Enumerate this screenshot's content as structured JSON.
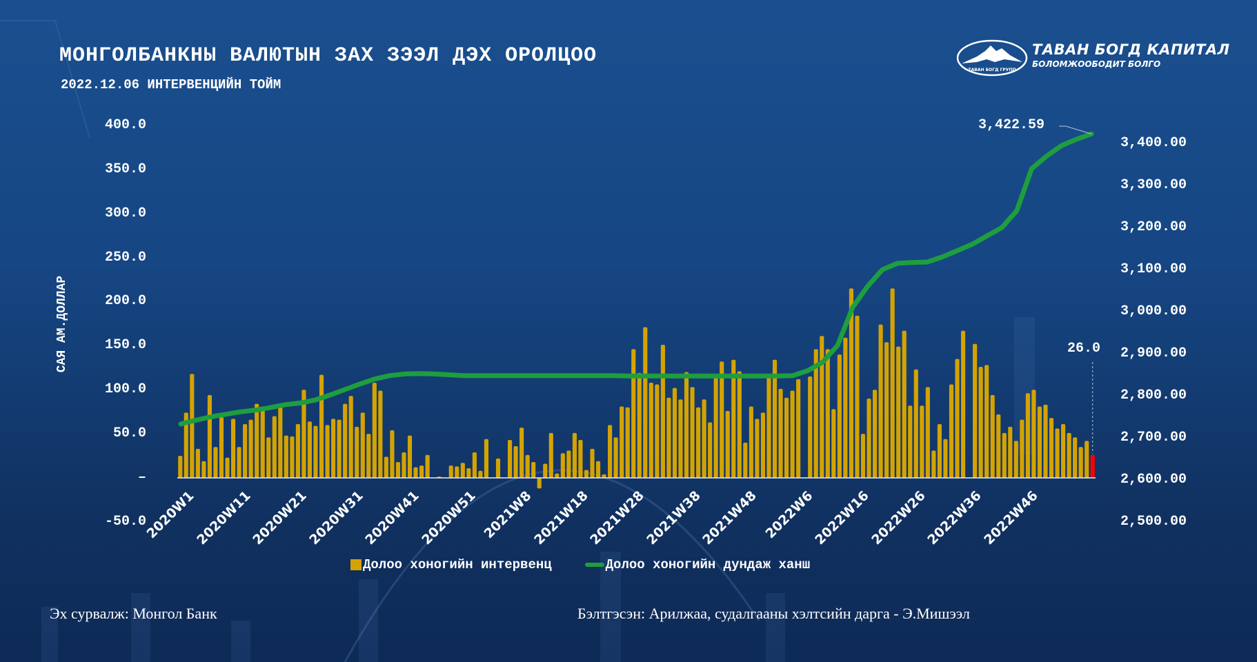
{
  "header": {
    "title": "МОНГОЛБАНКНЫ ВАЛЮТЫН ЗАХ ЗЭЭЛ ДЭХ ОРОЛЦОО",
    "subtitle": "2022.12.06 ИНТЕРВЕНЦИЙН ТОЙМ"
  },
  "logo": {
    "name": "ТАВАН БОГД КАПИТАЛ",
    "tagline": "БОЛОМЖООБОДИТ БОЛГО",
    "emblem_text": "ТАВАН БОГД ГРУПП",
    "icon": "mountain-logo-icon"
  },
  "footer": {
    "source": "Эх сурвалж: Монгол Банк",
    "prepared_by": "Бэлтгэсэн: Арилжаа, судалгааны хэлтсийн дарга -  Э.Мишээл"
  },
  "colors": {
    "bar": "#d4a300",
    "bar_highlight": "#ffc000",
    "last_bar": "#ff0000",
    "line": "#1e9e3e",
    "background_top": "#1a4f8f",
    "background_bottom": "#0e2a56"
  },
  "chart_data": {
    "type": "bar+line",
    "title": "МОНГОЛБАНКНЫ ВАЛЮТЫН ЗАХ ЗЭЭЛ ДЭХ ОРОЛЦОО",
    "ylabel": "САЯ АМ.ДОЛЛАР",
    "ylabel_right": "",
    "xlabel": "",
    "ylim": [
      -50,
      400
    ],
    "ylim_right": [
      2500,
      3450
    ],
    "yticks_left": [
      "400.0",
      "350.0",
      "300.0",
      "250.0",
      "200.0",
      "150.0",
      "100.0",
      "50.0",
      "–",
      "-50.0"
    ],
    "yticks_right": [
      "3,400.00",
      "3,300.00",
      "3,200.00",
      "3,100.00",
      "3,000.00",
      "2,900.00",
      "2,800.00",
      "2,700.00",
      "2,600.00",
      "2,500.00"
    ],
    "xtick_labels": [
      "2020W1",
      "2020W11",
      "2020W21",
      "2020W31",
      "2020W41",
      "2020W51",
      "2021W8",
      "2021W18",
      "2021W28",
      "2021W38",
      "2021W48",
      "2022W6",
      "2022W16",
      "2022W26",
      "2022W36",
      "2022W46"
    ],
    "legend": [
      "Долоо хоногийн интервенц",
      "Долоо хоногийн дундаж ханш"
    ],
    "legend_position": "bottom",
    "grid": false,
    "annotations": [
      {
        "text": "3,422.59",
        "target": "last line point"
      },
      {
        "text": "26.0",
        "target": "last bar"
      }
    ],
    "series": [
      {
        "name": "Долоо хоногийн интервенц",
        "axis": "left",
        "type": "bar",
        "values": [
          25,
          74,
          118,
          33,
          19,
          94,
          35,
          69,
          23,
          67,
          35,
          61,
          66,
          84,
          78,
          46,
          70,
          81,
          48,
          47,
          61,
          100,
          64,
          59,
          117,
          60,
          67,
          66,
          84,
          93,
          58,
          74,
          50,
          108,
          99,
          24,
          54,
          18,
          29,
          48,
          12,
          14,
          26,
          0,
          1.5,
          0,
          14,
          13,
          17,
          11,
          29,
          8,
          44,
          0,
          22,
          0,
          43,
          36,
          57,
          26,
          18,
          -12,
          16,
          51,
          5,
          28,
          31,
          51,
          43,
          9,
          33,
          19,
          4,
          60,
          46,
          81,
          80,
          146,
          119,
          171,
          108,
          106,
          151,
          91,
          102,
          89,
          120,
          103,
          80,
          89,
          63,
          115,
          132,
          76,
          134,
          121,
          40,
          81,
          67,
          74,
          115,
          134,
          101,
          91,
          99,
          112,
          0,
          115,
          146,
          161,
          146,
          78,
          140,
          159,
          215,
          184,
          50,
          90,
          100,
          174,
          154,
          215,
          149,
          167,
          82,
          123,
          82,
          103,
          31,
          61,
          44,
          106,
          135,
          167,
          0,
          152,
          126,
          128,
          94,
          72,
          51,
          58,
          42,
          66,
          96,
          100,
          81,
          83,
          68,
          56,
          61,
          51,
          46,
          35,
          42,
          26
        ]
      },
      {
        "name": "Долоо хоногийн дундаж ханш",
        "axis": "right",
        "type": "line",
        "values": [
          2733,
          2742,
          2750,
          2756,
          2762,
          2766,
          2772,
          2779,
          2783,
          2790,
          2802,
          2815,
          2828,
          2840,
          2848,
          2852,
          2853,
          2852,
          2850,
          2848,
          2848,
          2848,
          2848,
          2848,
          2848,
          2848,
          2848,
          2848,
          2848,
          2848,
          2847,
          2847,
          2847,
          2847,
          2847,
          2847,
          2847,
          2847,
          2847,
          2847,
          2847,
          2848,
          2860,
          2880,
          2920,
          3010,
          3060,
          3100,
          3115,
          3117,
          3118,
          3130,
          3145,
          3160,
          3180,
          3200,
          3240,
          3340,
          3370,
          3395,
          3410,
          3422.59
        ],
        "last_value": 3422.59
      }
    ]
  }
}
